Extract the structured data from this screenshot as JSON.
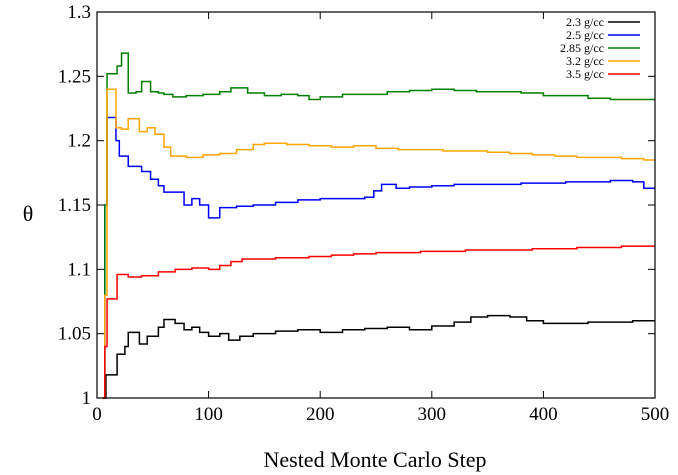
{
  "chart_data": {
    "type": "line",
    "xlabel": "Nested Monte Carlo Step",
    "ylabel": "θ",
    "xlim": [
      0,
      500
    ],
    "ylim": [
      1.0,
      1.3
    ],
    "xticks": [
      0,
      100,
      200,
      300,
      400,
      500
    ],
    "yticks": [
      1,
      1.05,
      1.1,
      1.15,
      1.2,
      1.25,
      1.3
    ],
    "ytick_labels": [
      "1",
      "1.05",
      "1.1",
      "1.15",
      "1.2",
      "1.25",
      "1.3"
    ],
    "grid": false,
    "legend_position": "top-right",
    "step": true,
    "series": [
      {
        "name": "2.3 g/cc",
        "color": "#000000",
        "points": [
          [
            5,
            1.0
          ],
          [
            8,
            1.018
          ],
          [
            18,
            1.034
          ],
          [
            25,
            1.04
          ],
          [
            28,
            1.051
          ],
          [
            38,
            1.042
          ],
          [
            45,
            1.048
          ],
          [
            55,
            1.055
          ],
          [
            60,
            1.061
          ],
          [
            70,
            1.058
          ],
          [
            78,
            1.053
          ],
          [
            85,
            1.055
          ],
          [
            92,
            1.051
          ],
          [
            100,
            1.048
          ],
          [
            110,
            1.05
          ],
          [
            118,
            1.045
          ],
          [
            128,
            1.048
          ],
          [
            140,
            1.05
          ],
          [
            160,
            1.052
          ],
          [
            180,
            1.053
          ],
          [
            200,
            1.051
          ],
          [
            220,
            1.053
          ],
          [
            240,
            1.054
          ],
          [
            260,
            1.055
          ],
          [
            280,
            1.053
          ],
          [
            300,
            1.056
          ],
          [
            320,
            1.059
          ],
          [
            335,
            1.063
          ],
          [
            350,
            1.064
          ],
          [
            370,
            1.063
          ],
          [
            385,
            1.06
          ],
          [
            400,
            1.058
          ],
          [
            420,
            1.058
          ],
          [
            440,
            1.059
          ],
          [
            460,
            1.059
          ],
          [
            480,
            1.06
          ],
          [
            500,
            1.06
          ]
        ]
      },
      {
        "name": "2.5 g/cc",
        "color": "#0000ff",
        "points": [
          [
            5,
            1.0
          ],
          [
            7,
            1.15
          ],
          [
            9,
            1.218
          ],
          [
            17,
            1.2
          ],
          [
            20,
            1.188
          ],
          [
            28,
            1.18
          ],
          [
            40,
            1.176
          ],
          [
            48,
            1.17
          ],
          [
            55,
            1.165
          ],
          [
            60,
            1.16
          ],
          [
            70,
            1.16
          ],
          [
            78,
            1.15
          ],
          [
            85,
            1.155
          ],
          [
            92,
            1.15
          ],
          [
            100,
            1.14
          ],
          [
            110,
            1.148
          ],
          [
            125,
            1.149
          ],
          [
            140,
            1.15
          ],
          [
            160,
            1.152
          ],
          [
            180,
            1.154
          ],
          [
            200,
            1.155
          ],
          [
            220,
            1.155
          ],
          [
            240,
            1.156
          ],
          [
            248,
            1.161
          ],
          [
            255,
            1.166
          ],
          [
            268,
            1.163
          ],
          [
            280,
            1.164
          ],
          [
            300,
            1.165
          ],
          [
            320,
            1.166
          ],
          [
            340,
            1.166
          ],
          [
            360,
            1.166
          ],
          [
            380,
            1.167
          ],
          [
            400,
            1.167
          ],
          [
            420,
            1.168
          ],
          [
            440,
            1.168
          ],
          [
            460,
            1.169
          ],
          [
            480,
            1.168
          ],
          [
            490,
            1.163
          ],
          [
            500,
            1.163
          ]
        ]
      },
      {
        "name": "2.85 g/cc",
        "color": "#007f00",
        "points": [
          [
            5,
            1.0
          ],
          [
            7,
            1.15
          ],
          [
            9,
            1.252
          ],
          [
            18,
            1.258
          ],
          [
            22,
            1.268
          ],
          [
            28,
            1.237
          ],
          [
            35,
            1.238
          ],
          [
            40,
            1.246
          ],
          [
            48,
            1.238
          ],
          [
            55,
            1.237
          ],
          [
            60,
            1.236
          ],
          [
            68,
            1.234
          ],
          [
            80,
            1.235
          ],
          [
            95,
            1.236
          ],
          [
            110,
            1.238
          ],
          [
            120,
            1.241
          ],
          [
            135,
            1.237
          ],
          [
            150,
            1.235
          ],
          [
            165,
            1.236
          ],
          [
            180,
            1.235
          ],
          [
            190,
            1.232
          ],
          [
            200,
            1.234
          ],
          [
            220,
            1.236
          ],
          [
            240,
            1.236
          ],
          [
            260,
            1.238
          ],
          [
            280,
            1.239
          ],
          [
            300,
            1.24
          ],
          [
            320,
            1.239
          ],
          [
            340,
            1.238
          ],
          [
            360,
            1.238
          ],
          [
            380,
            1.237
          ],
          [
            400,
            1.235
          ],
          [
            420,
            1.235
          ],
          [
            440,
            1.233
          ],
          [
            460,
            1.232
          ],
          [
            480,
            1.232
          ],
          [
            500,
            1.232
          ]
        ]
      },
      {
        "name": "3.2 g/cc",
        "color": "#ffa500",
        "points": [
          [
            5,
            1.0
          ],
          [
            7,
            1.08
          ],
          [
            9,
            1.24
          ],
          [
            17,
            1.21
          ],
          [
            22,
            1.209
          ],
          [
            28,
            1.217
          ],
          [
            38,
            1.207
          ],
          [
            45,
            1.21
          ],
          [
            52,
            1.205
          ],
          [
            60,
            1.195
          ],
          [
            66,
            1.188
          ],
          [
            80,
            1.187
          ],
          [
            95,
            1.189
          ],
          [
            110,
            1.19
          ],
          [
            125,
            1.193
          ],
          [
            140,
            1.197
          ],
          [
            150,
            1.198
          ],
          [
            170,
            1.197
          ],
          [
            190,
            1.196
          ],
          [
            210,
            1.195
          ],
          [
            230,
            1.196
          ],
          [
            250,
            1.194
          ],
          [
            270,
            1.193
          ],
          [
            290,
            1.193
          ],
          [
            310,
            1.192
          ],
          [
            330,
            1.192
          ],
          [
            350,
            1.191
          ],
          [
            370,
            1.19
          ],
          [
            390,
            1.189
          ],
          [
            410,
            1.188
          ],
          [
            430,
            1.187
          ],
          [
            450,
            1.187
          ],
          [
            470,
            1.186
          ],
          [
            490,
            1.185
          ],
          [
            500,
            1.185
          ]
        ]
      },
      {
        "name": "3.5 g/cc",
        "color": "#ff0000",
        "points": [
          [
            5,
            1.0
          ],
          [
            7,
            1.04
          ],
          [
            9,
            1.077
          ],
          [
            18,
            1.096
          ],
          [
            28,
            1.094
          ],
          [
            40,
            1.095
          ],
          [
            55,
            1.098
          ],
          [
            70,
            1.1
          ],
          [
            85,
            1.101
          ],
          [
            100,
            1.1
          ],
          [
            110,
            1.103
          ],
          [
            120,
            1.106
          ],
          [
            130,
            1.108
          ],
          [
            145,
            1.108
          ],
          [
            160,
            1.109
          ],
          [
            175,
            1.109
          ],
          [
            190,
            1.11
          ],
          [
            210,
            1.111
          ],
          [
            230,
            1.112
          ],
          [
            250,
            1.113
          ],
          [
            270,
            1.113
          ],
          [
            290,
            1.114
          ],
          [
            310,
            1.114
          ],
          [
            330,
            1.115
          ],
          [
            350,
            1.115
          ],
          [
            370,
            1.115
          ],
          [
            390,
            1.116
          ],
          [
            410,
            1.116
          ],
          [
            430,
            1.117
          ],
          [
            450,
            1.117
          ],
          [
            470,
            1.118
          ],
          [
            490,
            1.118
          ],
          [
            500,
            1.118
          ]
        ]
      }
    ]
  }
}
